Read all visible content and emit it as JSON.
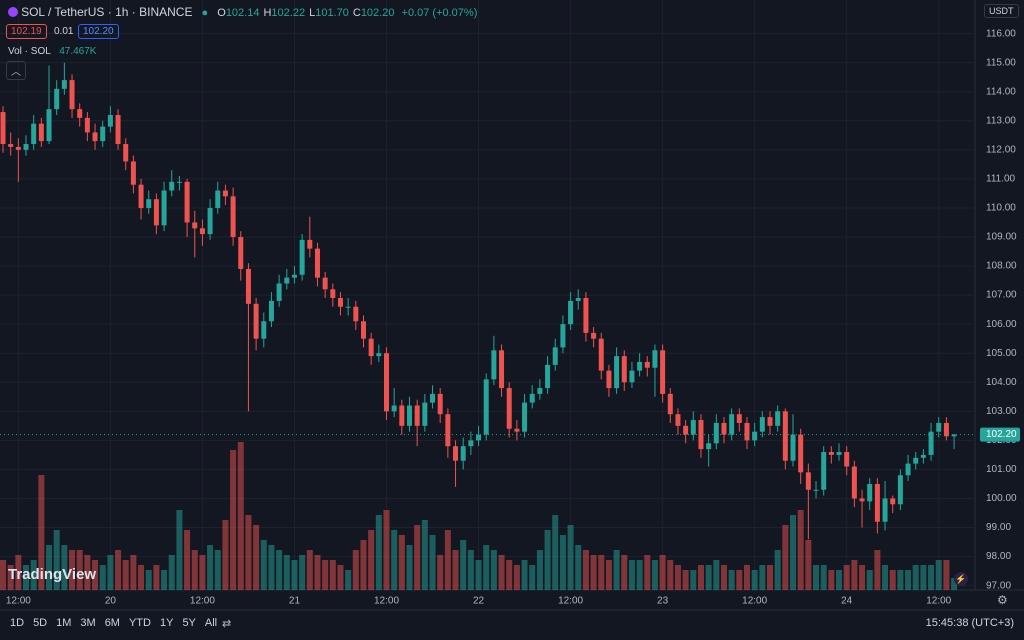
{
  "header": {
    "symbol": "SOL / TetherUS · 1h · BINANCE",
    "ohlc": [
      {
        "key": "O",
        "value": "102.14"
      },
      {
        "key": "H",
        "value": "102.22"
      },
      {
        "key": "L",
        "value": "101.70"
      },
      {
        "key": "C",
        "value": "102.20"
      }
    ],
    "change": "+0.07 (+0.07%)",
    "bid": "102.19",
    "spread": "0.01",
    "ask": "102.20",
    "volume_label": "Vol · SOL",
    "volume_value": "47.467K"
  },
  "currency": "USDT",
  "logo": "TradingView",
  "ranges": [
    "1D",
    "5D",
    "1M",
    "3M",
    "6M",
    "YTD",
    "1Y",
    "5Y",
    "All"
  ],
  "clock": "15:45:38 (UTC+3)",
  "chart_data": {
    "type": "candlestick",
    "up_color": "#26a69a",
    "down_color": "#ef5350",
    "grid": true,
    "categories": [
      null,
      null,
      "12:00",
      null,
      null,
      null,
      null,
      null,
      null,
      null,
      null,
      null,
      null,
      null,
      "20",
      null,
      null,
      null,
      null,
      null,
      null,
      null,
      null,
      null,
      null,
      null,
      "12:00",
      null,
      null,
      null,
      null,
      null,
      null,
      null,
      null,
      null,
      null,
      null,
      "21",
      null,
      null,
      null,
      null,
      null,
      null,
      null,
      null,
      null,
      null,
      null,
      "12:00",
      null,
      null,
      null,
      null,
      null,
      null,
      null,
      null,
      null,
      null,
      null,
      "22",
      null,
      null,
      null,
      null,
      null,
      null,
      null,
      null,
      null,
      null,
      null,
      "12:00",
      null,
      null,
      null,
      null,
      null,
      null,
      null,
      null,
      null,
      null,
      null,
      "23",
      null,
      null,
      null,
      null,
      null,
      null,
      null,
      null,
      null,
      null,
      null,
      "12:00",
      null,
      null,
      null,
      null,
      null,
      null,
      null,
      null,
      null,
      null,
      null,
      "24",
      null,
      null,
      null,
      null,
      null,
      null,
      null,
      null,
      null,
      null,
      null,
      "12:00",
      null,
      null
    ],
    "open": [
      113.3,
      112.2,
      112.1,
      112.0,
      112.2,
      112.9,
      112.3,
      113.4,
      114.1,
      114.4,
      113.4,
      113.1,
      112.6,
      112.3,
      112.8,
      113.2,
      112.2,
      111.6,
      110.8,
      110.0,
      110.3,
      109.4,
      110.6,
      110.9,
      110.9,
      109.5,
      109.3,
      109.1,
      110.0,
      110.6,
      110.4,
      109.0,
      107.9,
      106.7,
      105.5,
      106.1,
      106.8,
      107.4,
      107.6,
      107.7,
      108.9,
      108.6,
      107.6,
      107.2,
      106.9,
      106.6,
      106.6,
      106.1,
      105.5,
      104.9,
      105.0,
      103.0,
      103.2,
      102.5,
      103.2,
      102.5,
      103.3,
      103.6,
      102.9,
      101.8,
      101.3,
      101.8,
      102.0,
      102.2,
      104.1,
      105.1,
      103.8,
      102.4,
      102.3,
      103.3,
      103.6,
      103.8,
      104.6,
      105.2,
      106.0,
      106.8,
      106.9,
      105.7,
      105.5,
      104.4,
      103.8,
      104.9,
      104.0,
      104.4,
      104.7,
      104.5,
      105.1,
      103.6,
      102.9,
      102.5,
      102.2,
      102.7,
      101.7,
      101.9,
      102.6,
      102.2,
      102.9,
      102.6,
      102.0,
      102.3,
      102.8,
      102.5,
      103.0,
      101.3,
      102.2,
      100.9,
      100.3,
      100.3,
      101.6,
      101.5,
      101.6,
      101.1,
      100.0,
      99.9,
      100.5,
      99.2,
      100.0,
      99.8,
      100.8,
      101.2,
      101.4,
      101.5,
      102.3,
      102.6,
      102.14
    ],
    "high": [
      113.5,
      112.6,
      112.4,
      112.5,
      113.2,
      113.1,
      114.9,
      114.4,
      115.0,
      114.6,
      113.6,
      113.3,
      112.9,
      113.0,
      113.5,
      113.4,
      112.4,
      111.8,
      111.0,
      110.6,
      110.5,
      110.9,
      111.3,
      111.1,
      111.0,
      109.9,
      109.6,
      110.3,
      110.9,
      110.8,
      110.7,
      109.2,
      108.1,
      106.9,
      106.4,
      107.1,
      107.7,
      107.9,
      108.0,
      109.1,
      109.7,
      108.8,
      107.8,
      107.4,
      107.1,
      106.9,
      106.8,
      106.3,
      105.7,
      105.3,
      105.2,
      103.8,
      103.4,
      103.5,
      103.4,
      103.6,
      103.9,
      103.8,
      103.1,
      102.0,
      102.1,
      102.3,
      102.5,
      104.3,
      105.6,
      105.3,
      104.0,
      102.7,
      103.6,
      103.9,
      104.1,
      104.9,
      105.5,
      106.3,
      107.1,
      107.2,
      107.1,
      105.9,
      105.7,
      104.6,
      105.2,
      105.1,
      104.7,
      105.0,
      104.9,
      105.3,
      105.3,
      103.8,
      103.1,
      102.7,
      103.0,
      102.9,
      102.2,
      102.9,
      102.8,
      103.1,
      103.1,
      102.8,
      102.6,
      103.0,
      103.0,
      103.2,
      103.1,
      102.9,
      102.4,
      101.2,
      100.6,
      101.8,
      101.8,
      101.9,
      101.8,
      101.3,
      100.3,
      100.7,
      100.7,
      100.6,
      100.1,
      101.0,
      101.5,
      101.6,
      101.7,
      102.6,
      102.8,
      102.8,
      102.22
    ],
    "low": [
      111.9,
      111.8,
      110.9,
      111.8,
      112.0,
      112.1,
      112.2,
      113.2,
      113.9,
      113.1,
      112.8,
      112.3,
      112.0,
      112.1,
      112.6,
      112.0,
      111.3,
      110.5,
      109.6,
      109.8,
      109.1,
      109.2,
      110.4,
      110.6,
      109.0,
      108.3,
      108.7,
      108.9,
      109.8,
      110.1,
      108.7,
      107.5,
      103.0,
      105.1,
      105.2,
      105.9,
      106.6,
      107.2,
      107.4,
      107.5,
      108.3,
      107.3,
      106.9,
      106.6,
      106.3,
      106.3,
      105.8,
      105.2,
      104.6,
      104.7,
      102.7,
      102.8,
      102.2,
      102.3,
      101.8,
      102.3,
      103.1,
      102.6,
      101.4,
      100.4,
      101.0,
      101.5,
      101.8,
      102.0,
      103.9,
      103.5,
      102.1,
      102.0,
      102.1,
      103.1,
      103.4,
      103.6,
      104.4,
      105.0,
      105.8,
      106.5,
      105.4,
      105.2,
      104.1,
      103.5,
      103.6,
      103.7,
      103.8,
      104.2,
      104.2,
      103.5,
      103.3,
      102.6,
      102.2,
      101.9,
      102.0,
      101.4,
      101.1,
      101.7,
      101.9,
      102.0,
      102.3,
      101.7,
      101.8,
      102.1,
      102.2,
      102.3,
      101.0,
      101.1,
      100.5,
      98.6,
      100.0,
      100.1,
      101.2,
      101.3,
      100.8,
      99.7,
      99.0,
      99.6,
      98.8,
      98.9,
      99.5,
      99.6,
      100.6,
      101.0,
      101.2,
      101.3,
      102.1,
      102.0,
      101.7
    ],
    "close": [
      112.2,
      112.1,
      112.0,
      112.2,
      112.9,
      112.3,
      113.4,
      114.1,
      114.4,
      113.4,
      113.1,
      112.6,
      112.3,
      112.8,
      113.2,
      112.2,
      111.6,
      110.8,
      110.0,
      110.3,
      109.4,
      110.6,
      110.9,
      110.9,
      109.5,
      109.3,
      109.1,
      110.0,
      110.6,
      110.4,
      109.0,
      107.9,
      106.7,
      105.5,
      106.1,
      106.8,
      107.4,
      107.6,
      107.7,
      108.9,
      108.6,
      107.6,
      107.2,
      106.9,
      106.6,
      106.6,
      106.1,
      105.5,
      104.9,
      105.0,
      103.0,
      103.2,
      102.5,
      103.2,
      102.5,
      103.3,
      103.6,
      102.9,
      101.8,
      101.3,
      101.8,
      102.0,
      102.2,
      104.1,
      105.1,
      103.8,
      102.4,
      102.3,
      103.3,
      103.6,
      103.8,
      104.6,
      105.2,
      106.0,
      106.8,
      106.9,
      105.7,
      105.5,
      104.4,
      103.8,
      104.9,
      104.0,
      104.4,
      104.7,
      104.5,
      105.1,
      103.6,
      102.9,
      102.5,
      102.2,
      102.7,
      101.7,
      101.9,
      102.6,
      102.2,
      102.9,
      102.6,
      102.0,
      102.3,
      102.8,
      102.5,
      103.0,
      101.3,
      102.2,
      100.9,
      100.3,
      100.3,
      101.6,
      101.5,
      101.6,
      101.1,
      100.0,
      99.9,
      100.5,
      99.2,
      100.0,
      99.8,
      100.8,
      101.2,
      101.4,
      101.5,
      102.3,
      102.6,
      102.14,
      102.2
    ],
    "volume": [
      120000,
      100000,
      140000,
      100000,
      120000,
      460000,
      180000,
      240000,
      180000,
      160000,
      160000,
      140000,
      120000,
      100000,
      140000,
      160000,
      120000,
      140000,
      100000,
      80000,
      100000,
      80000,
      140000,
      320000,
      240000,
      160000,
      140000,
      180000,
      160000,
      280000,
      560000,
      592000,
      300000,
      260000,
      200000,
      180000,
      160000,
      140000,
      120000,
      140000,
      160000,
      140000,
      120000,
      120000,
      100000,
      80000,
      160000,
      200000,
      240000,
      300000,
      320000,
      240000,
      220000,
      180000,
      260000,
      280000,
      220000,
      140000,
      240000,
      160000,
      200000,
      160000,
      120000,
      180000,
      160000,
      140000,
      120000,
      100000,
      120000,
      100000,
      160000,
      240000,
      300000,
      220000,
      260000,
      180000,
      160000,
      140000,
      140000,
      120000,
      160000,
      140000,
      120000,
      120000,
      140000,
      120000,
      140000,
      120000,
      100000,
      80000,
      80000,
      100000,
      100000,
      120000,
      100000,
      80000,
      80000,
      100000,
      80000,
      100000,
      100000,
      160000,
      260000,
      300000,
      320000,
      200000,
      100000,
      100000,
      80000,
      80000,
      100000,
      120000,
      100000,
      80000,
      160000,
      100000,
      80000,
      80000,
      80000,
      100000,
      100000,
      100000,
      120000,
      120000,
      47467
    ],
    "ylim": [
      96.85,
      116.4
    ],
    "yticks": [
      {
        "value": 97,
        "label": "97.00"
      },
      {
        "value": 98,
        "label": "98.00"
      },
      {
        "value": 99,
        "label": "99.00"
      },
      {
        "value": 100,
        "label": "100.00"
      },
      {
        "value": 101,
        "label": "101.00"
      },
      {
        "value": 102,
        "label": "102.00"
      },
      {
        "value": 103,
        "label": "103.00"
      },
      {
        "value": 104,
        "label": "104.00"
      },
      {
        "value": 105,
        "label": "105.00"
      },
      {
        "value": 106,
        "label": "106.00"
      },
      {
        "value": 107,
        "label": "107.00"
      },
      {
        "value": 108,
        "label": "108.00"
      },
      {
        "value": 109,
        "label": "109.00"
      },
      {
        "value": 110,
        "label": "110.00"
      },
      {
        "value": 111,
        "label": "111.00"
      },
      {
        "value": 112,
        "label": "112.00"
      },
      {
        "value": 113,
        "label": "113.00"
      },
      {
        "value": 114,
        "label": "114.00"
      },
      {
        "value": 115,
        "label": "115.00"
      },
      {
        "value": 116,
        "label": "116.00"
      }
    ],
    "last_price": {
      "value": 102.2,
      "label": "102.20"
    }
  }
}
